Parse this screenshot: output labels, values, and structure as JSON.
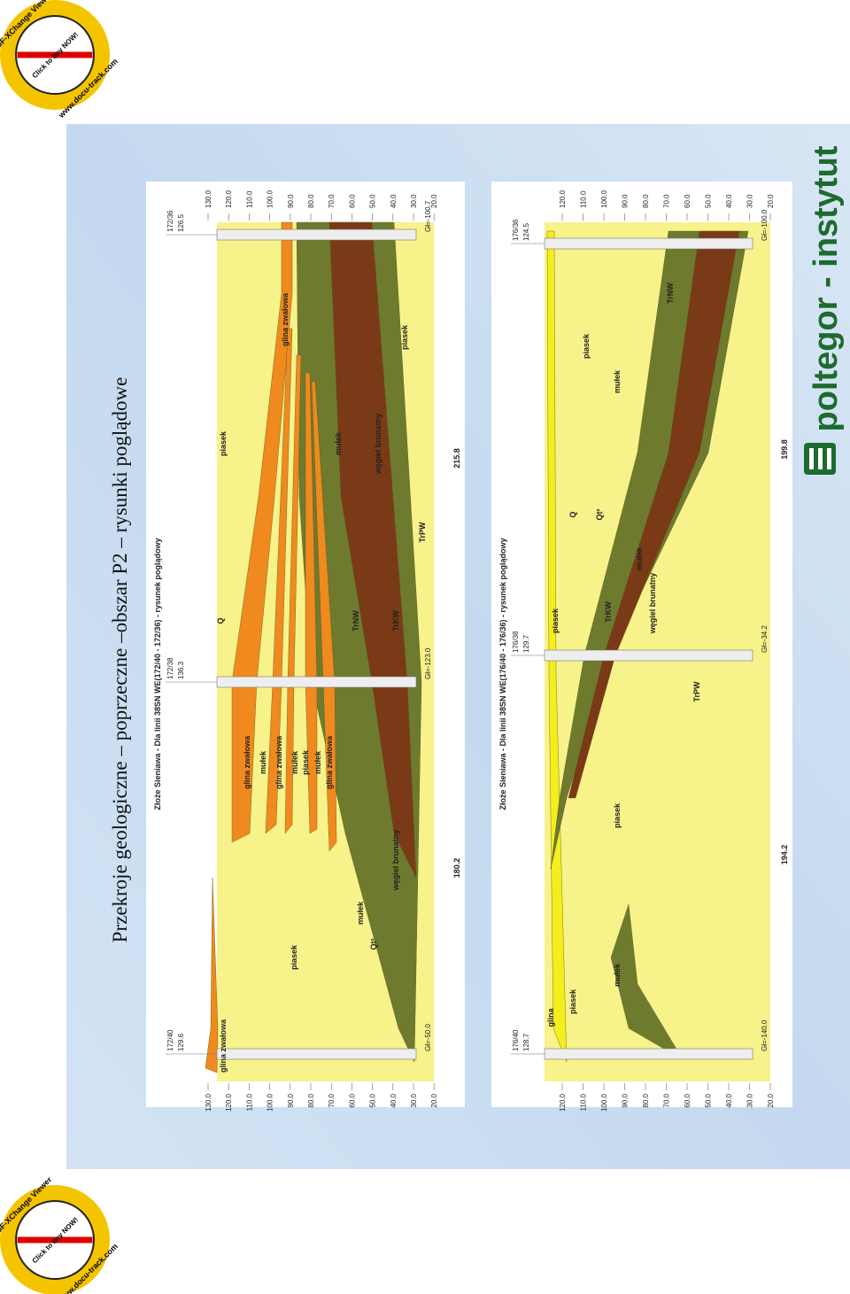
{
  "title": "Przekroje geologiczne – poprzeczne –obszar P2 – rysunki poglądowe",
  "sections": [
    {
      "title": "Złoże Sieniawa - Dla linii 38SN WE(172/40 - 172/36) - rysunek poglądowy",
      "boreholes": [
        {
          "name": "172/40",
          "elevation": "129.6",
          "bottom": "Gł=-50.0"
        },
        {
          "name": "172/38",
          "elevation": "136.3",
          "bottom": "Gł=-123.0"
        },
        {
          "name": "172/36",
          "elevation": "126.5",
          "bottom": "Gł=-100.7"
        }
      ],
      "distances": [
        "180.2",
        "215.8"
      ],
      "elevation_ticks": [
        "130.0",
        "120.0",
        "110.0",
        "100.0",
        "90.0",
        "80.0",
        "70.0",
        "60.0",
        "50.0",
        "40.0",
        "30.0",
        "20.0"
      ],
      "labels": [
        "glina zwałowa",
        "piasek",
        "Qt²",
        "mułek",
        "węgiel brunatny",
        "glina zwałowa",
        "mułek",
        "glina zwałowa",
        "mułek",
        "piasek",
        "mułek",
        "glina zwałowa",
        "Q",
        "TrNW",
        "TrKW",
        "TrPW",
        "piasek",
        "mułek",
        "węgiel brunatny",
        "glina zwałowa",
        "piasek"
      ]
    },
    {
      "title": "Złoże Sieniawa - Dla linii 38SN WE(176/40 - 176/36) - rysunek poglądowy",
      "boreholes": [
        {
          "name": "176/40",
          "elevation": "128.7",
          "bottom": "Gł=-140.0"
        },
        {
          "name": "176/38",
          "elevation": "129.7",
          "bottom": "Gł=-34.2"
        },
        {
          "name": "176/36",
          "elevation": "124.5",
          "bottom": "Gł=-100.0"
        }
      ],
      "distances": [
        "194.2",
        "199.8"
      ],
      "elevation_ticks": [
        "120.0",
        "110.0",
        "100.0",
        "90.0",
        "80.0",
        "70.0",
        "60.0",
        "50.0",
        "40.0",
        "30.0",
        "20.0"
      ],
      "labels": [
        "glina",
        "piasek",
        "mułek",
        "piasek",
        "TrPW",
        "piasek",
        "TrKW",
        "węgiel brunatny",
        "mułek",
        "Q",
        "Qt²",
        "piasek",
        "mułek",
        "TrNW"
      ]
    }
  ],
  "logo": "poltegor - instytut",
  "stamp": {
    "line1": "PDF-XChange Viewer",
    "line2": "Click to buy NOW!",
    "line3": "www.docu-track.com"
  }
}
